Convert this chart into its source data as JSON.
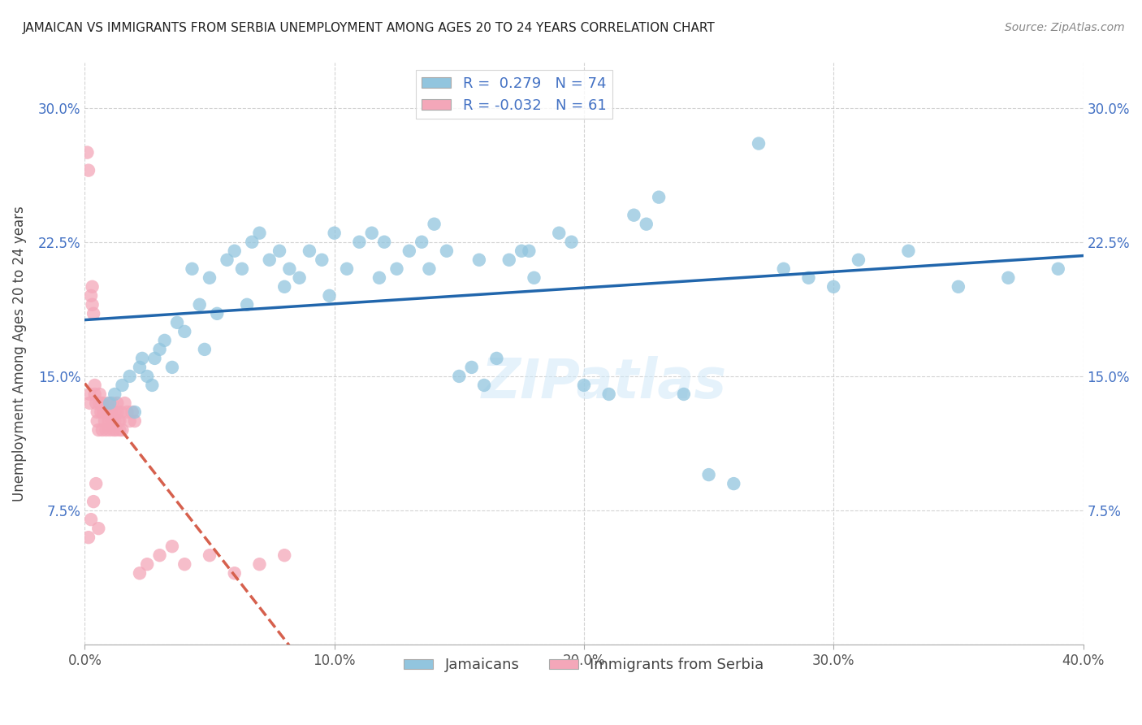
{
  "title": "JAMAICAN VS IMMIGRANTS FROM SERBIA UNEMPLOYMENT AMONG AGES 20 TO 24 YEARS CORRELATION CHART",
  "source": "Source: ZipAtlas.com",
  "ylabel": "Unemployment Among Ages 20 to 24 years",
  "xlim": [
    0.0,
    40.0
  ],
  "ylim": [
    0.0,
    32.5
  ],
  "xticks": [
    0.0,
    10.0,
    20.0,
    30.0,
    40.0
  ],
  "yticks": [
    0.0,
    7.5,
    15.0,
    22.5,
    30.0
  ],
  "xticklabels": [
    "0.0%",
    "10.0%",
    "20.0%",
    "30.0%",
    "40.0%"
  ],
  "yticklabels_left": [
    "",
    "7.5%",
    "15.0%",
    "22.5%",
    "30.0%"
  ],
  "yticklabels_right": [
    "",
    "7.5%",
    "15.0%",
    "22.5%",
    "30.0%"
  ],
  "blue_color": "#92C5DE",
  "pink_color": "#F4A7B9",
  "blue_line_color": "#2166AC",
  "pink_line_color": "#D6604D",
  "R_blue": 0.279,
  "N_blue": 74,
  "R_pink": -0.032,
  "N_pink": 61,
  "legend_label_blue": "Jamaicans",
  "legend_label_pink": "Immigrants from Serbia",
  "blue_scatter_x": [
    1.0,
    1.2,
    1.5,
    1.8,
    2.0,
    2.2,
    2.3,
    2.5,
    2.7,
    3.0,
    3.2,
    3.5,
    3.7,
    4.0,
    4.3,
    4.6,
    5.0,
    5.3,
    5.7,
    6.0,
    6.3,
    6.7,
    7.0,
    7.4,
    7.8,
    8.2,
    8.6,
    9.0,
    9.5,
    10.0,
    10.5,
    11.0,
    11.5,
    12.0,
    12.5,
    13.0,
    13.5,
    14.0,
    14.5,
    15.0,
    15.5,
    16.0,
    16.5,
    17.0,
    17.5,
    18.0,
    19.0,
    20.0,
    21.0,
    22.0,
    23.0,
    24.0,
    25.0,
    26.0,
    27.0,
    28.0,
    29.0,
    30.0,
    31.0,
    33.0,
    35.0,
    37.0,
    39.0,
    2.8,
    4.8,
    6.5,
    8.0,
    9.8,
    11.8,
    13.8,
    15.8,
    17.8,
    19.5,
    22.5
  ],
  "blue_scatter_y": [
    13.5,
    14.0,
    14.5,
    15.0,
    13.0,
    15.5,
    16.0,
    15.0,
    14.5,
    16.5,
    17.0,
    15.5,
    18.0,
    17.5,
    21.0,
    19.0,
    20.5,
    18.5,
    21.5,
    22.0,
    21.0,
    22.5,
    23.0,
    21.5,
    22.0,
    21.0,
    20.5,
    22.0,
    21.5,
    23.0,
    21.0,
    22.5,
    23.0,
    22.5,
    21.0,
    22.0,
    22.5,
    23.5,
    22.0,
    15.0,
    15.5,
    14.5,
    16.0,
    21.5,
    22.0,
    20.5,
    23.0,
    14.5,
    14.0,
    24.0,
    25.0,
    14.0,
    9.5,
    9.0,
    28.0,
    21.0,
    20.5,
    20.0,
    21.5,
    22.0,
    20.0,
    20.5,
    21.0,
    16.0,
    16.5,
    19.0,
    20.0,
    19.5,
    20.5,
    21.0,
    21.5,
    22.0,
    22.5,
    23.5
  ],
  "pink_scatter_x": [
    0.1,
    0.15,
    0.2,
    0.2,
    0.25,
    0.3,
    0.3,
    0.35,
    0.4,
    0.4,
    0.45,
    0.5,
    0.5,
    0.55,
    0.6,
    0.6,
    0.65,
    0.7,
    0.7,
    0.75,
    0.8,
    0.8,
    0.85,
    0.9,
    0.9,
    0.95,
    1.0,
    1.0,
    1.05,
    1.1,
    1.1,
    1.15,
    1.2,
    1.2,
    1.25,
    1.3,
    1.3,
    1.35,
    1.4,
    1.4,
    1.45,
    1.5,
    1.6,
    1.7,
    1.8,
    1.9,
    2.0,
    2.2,
    2.5,
    3.0,
    3.5,
    4.0,
    5.0,
    6.0,
    7.0,
    8.0,
    0.15,
    0.25,
    0.35,
    0.45,
    0.55
  ],
  "pink_scatter_y": [
    27.5,
    26.5,
    14.0,
    13.5,
    19.5,
    20.0,
    19.0,
    18.5,
    14.5,
    14.0,
    13.5,
    12.5,
    13.0,
    12.0,
    13.5,
    14.0,
    13.0,
    12.0,
    13.5,
    13.0,
    12.5,
    13.0,
    12.0,
    13.5,
    13.0,
    12.5,
    12.0,
    12.5,
    13.0,
    13.5,
    12.5,
    12.0,
    13.0,
    12.5,
    12.0,
    13.5,
    13.0,
    12.5,
    12.0,
    12.5,
    13.0,
    12.0,
    13.5,
    13.0,
    12.5,
    13.0,
    12.5,
    4.0,
    4.5,
    5.0,
    5.5,
    4.5,
    5.0,
    4.0,
    4.5,
    5.0,
    6.0,
    7.0,
    8.0,
    9.0,
    6.5
  ],
  "watermark": "ZIPatlas",
  "background_color": "#FFFFFF",
  "grid_color": "#C8C8C8"
}
